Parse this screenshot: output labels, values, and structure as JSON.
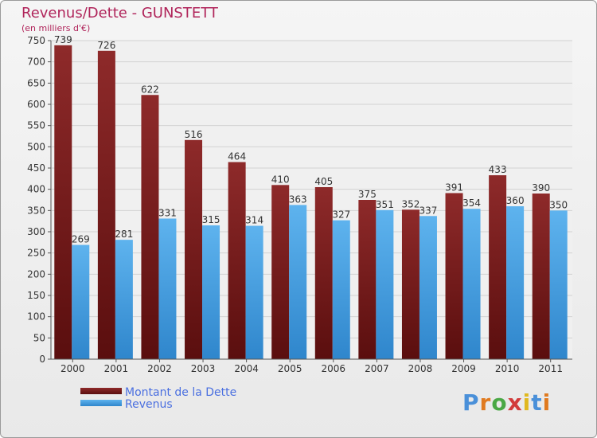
{
  "brand": {
    "text": "Proxiti"
  },
  "chart_data": {
    "type": "bar",
    "title": "Revenus/Dette - GUNSTETT",
    "subtitle": "(en milliers d'€)",
    "xlabel": "",
    "ylabel": "",
    "ylim": [
      0,
      750
    ],
    "ytick_step": 50,
    "grid": true,
    "legend_position": "bottom-left",
    "categories": [
      "2000",
      "2001",
      "2002",
      "2003",
      "2004",
      "2005",
      "2006",
      "2007",
      "2008",
      "2009",
      "2010",
      "2011"
    ],
    "series": [
      {
        "name": "Montant de la Dette",
        "color": "#7a1a1a",
        "values": [
          739,
          726,
          622,
          516,
          464,
          410,
          405,
          375,
          352,
          391,
          433,
          390
        ]
      },
      {
        "name": "Revenus",
        "color": "#4aa3e6",
        "values": [
          269,
          281,
          331,
          315,
          314,
          363,
          327,
          351,
          337,
          354,
          360,
          350
        ]
      }
    ]
  }
}
